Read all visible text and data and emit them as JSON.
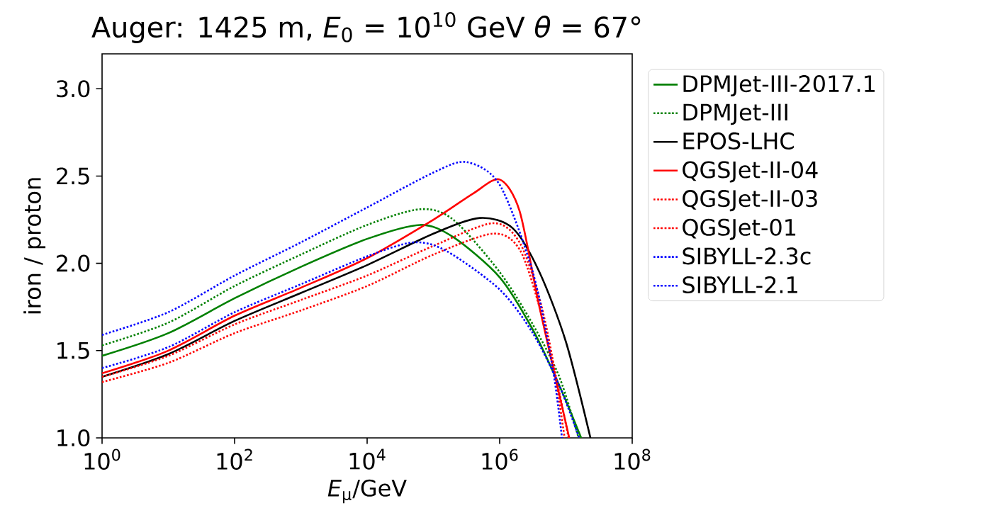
{
  "chart_data": {
    "type": "line",
    "title": "Auger: 1425 m, *E*$_{0}$ = 10$^{10}$ GeV *θ* = 67°",
    "xlabel": "*E*$_{μ}$/GeV",
    "ylabel": "iron / proton",
    "log": "x",
    "xlim": [
      1,
      100000000
    ],
    "ylim": [
      1.0,
      3.2
    ],
    "xticks": [
      {
        "value": 1,
        "label": "10$^{0}$"
      },
      {
        "value": 100,
        "label": "10$^{2}$"
      },
      {
        "value": 10000,
        "label": "10$^{4}$"
      },
      {
        "value": 1000000,
        "label": "10$^{6}$"
      },
      {
        "value": 100000000,
        "label": "10$^{8}$"
      }
    ],
    "yticks": [
      {
        "value": 1.0,
        "label": "1.0"
      },
      {
        "value": 1.5,
        "label": "1.5"
      },
      {
        "value": 2.0,
        "label": "2.0"
      },
      {
        "value": 2.5,
        "label": "2.5"
      },
      {
        "value": 3.0,
        "label": "3.0"
      }
    ],
    "grid": false,
    "legend": "right",
    "marker": "none",
    "series": [
      {
        "name": "DPMJet-III-2017.1",
        "color": "#008000",
        "line_style": "solid",
        "x": [
          1,
          10,
          100,
          1000,
          10000,
          63096,
          199526,
          1000000,
          3162278,
          7943282,
          16982437
        ],
        "values": [
          1.47,
          1.6,
          1.8,
          1.98,
          2.14,
          2.22,
          2.15,
          1.92,
          1.62,
          1.3,
          1.0
        ]
      },
      {
        "name": "DPMJet-III",
        "color": "#008000",
        "line_style": "dotted",
        "x": [
          1,
          10,
          100,
          1000,
          10000,
          63096,
          199526,
          1000000,
          3162278,
          7943282,
          15488166
        ],
        "values": [
          1.53,
          1.66,
          1.87,
          2.05,
          2.22,
          2.31,
          2.25,
          1.95,
          1.65,
          1.35,
          1.0
        ]
      },
      {
        "name": "EPOS-LHC",
        "color": "#000000",
        "line_style": "solid",
        "x": [
          1,
          10,
          100,
          1000,
          10000,
          100000,
          501187,
          1584893,
          3981072,
          10000000,
          23442288
        ],
        "values": [
          1.35,
          1.48,
          1.67,
          1.83,
          1.99,
          2.17,
          2.26,
          2.2,
          1.95,
          1.55,
          1.0
        ]
      },
      {
        "name": "QGSJet-II-04",
        "color": "#ff0000",
        "line_style": "solid",
        "x": [
          1,
          10,
          100,
          1000,
          10000,
          100000,
          398107,
          1000000,
          1995262,
          3981072,
          11220185
        ],
        "values": [
          1.37,
          1.5,
          1.7,
          1.86,
          2.03,
          2.25,
          2.4,
          2.48,
          2.3,
          1.75,
          1.0
        ]
      },
      {
        "name": "QGSJet-II-03",
        "color": "#ff0000",
        "line_style": "dotted",
        "x": [
          1,
          10,
          100,
          1000,
          10000,
          100000,
          794328,
          1995262,
          3981072,
          6309573,
          9549926
        ],
        "values": [
          1.35,
          1.47,
          1.65,
          1.79,
          1.93,
          2.1,
          2.23,
          2.12,
          1.8,
          1.45,
          1.0
        ]
      },
      {
        "name": "QGSJet-01",
        "color": "#ff0000",
        "line_style": "dotted",
        "x": [
          1,
          10,
          100,
          1000,
          10000,
          100000,
          794328,
          1995262,
          3981072,
          7079458,
          10964782
        ],
        "values": [
          1.32,
          1.43,
          1.6,
          1.73,
          1.87,
          2.05,
          2.17,
          2.08,
          1.75,
          1.35,
          1.0
        ]
      },
      {
        "name": "SIBYLL-2.3c",
        "color": "#0000ff",
        "line_style": "dotted",
        "x": [
          1,
          10,
          100,
          1000,
          10000,
          100000,
          316228,
          1000000,
          3162278,
          6309573,
          8709636
        ],
        "values": [
          1.59,
          1.72,
          1.93,
          2.12,
          2.32,
          2.52,
          2.58,
          2.45,
          1.95,
          1.4,
          1.0
        ]
      },
      {
        "name": "SIBYLL-2.1",
        "color": "#0000ff",
        "line_style": "dotted",
        "x": [
          1,
          10,
          100,
          1000,
          10000,
          50119,
          158489,
          1000000,
          3162278,
          7943282,
          15848932
        ],
        "values": [
          1.4,
          1.52,
          1.72,
          1.88,
          2.04,
          2.12,
          2.07,
          1.85,
          1.6,
          1.3,
          1.0
        ]
      }
    ]
  }
}
